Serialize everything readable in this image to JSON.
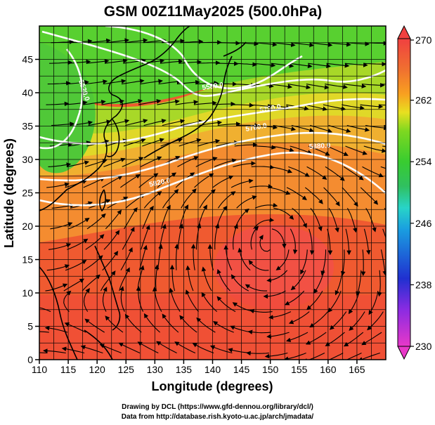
{
  "title": "GSM 00Z11May2025 (500.0hPa)",
  "xlabel": "Longitude (degrees)",
  "ylabel": "Latitude  (degrees)",
  "credit_line1": "Drawing by DCL (https://www.gfd-dennou.org/library/dcl/)",
  "credit_line2": "Data from http://database.rish.kyoto-u.ac.jp/arch/jmadata/",
  "colors": {
    "contour": "#ffffff",
    "coast": "#000000",
    "grid": "#000000"
  },
  "chart_data": {
    "type": "heatmap",
    "variable": "temperature with height contours and streamlines",
    "xlim": [
      110,
      170
    ],
    "ylim": [
      0,
      50
    ],
    "xticks": [
      "110",
      "115",
      "120",
      "125",
      "130",
      "135",
      "140",
      "145",
      "150",
      "155",
      "160",
      "165"
    ],
    "yticks": [
      "0",
      "5",
      "10",
      "15",
      "20",
      "25",
      "30",
      "35",
      "40",
      "45"
    ],
    "colorbar": {
      "min": 230,
      "max": 270,
      "ticks": [
        "270",
        "262",
        "254",
        "246",
        "238",
        "230"
      ],
      "colors": [
        "#e838c8",
        "#8a2be2",
        "#2030d0",
        "#1a9ee0",
        "#28d4c8",
        "#30c060",
        "#38cc30",
        "#7ed820",
        "#e8e020",
        "#f8a020",
        "#f07030",
        "#f04040"
      ]
    },
    "contour_labels": [
      "5520.0",
      "5580.0",
      "5700.0",
      "5760.0",
      "5820.0",
      "5880.0"
    ]
  }
}
